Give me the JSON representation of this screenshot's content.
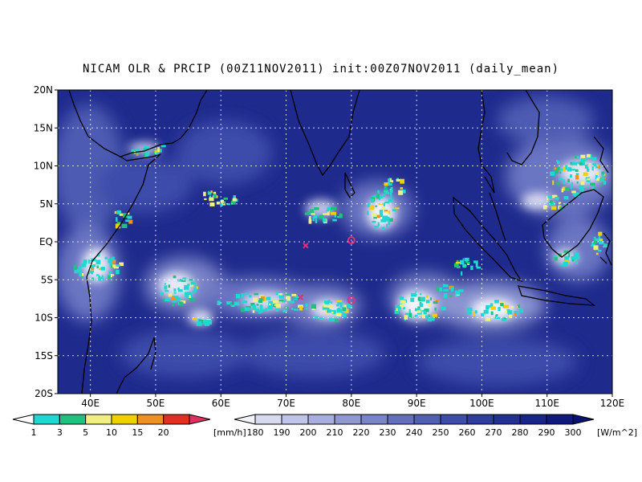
{
  "title": "NICAM OLR & PRCIP (00Z11NOV2011) init:00Z07NOV2011 (daily_mean)",
  "map": {
    "lon_range": [
      35,
      120
    ],
    "lat_range": [
      -20,
      20
    ],
    "grid": "dotted",
    "lat_ticks": [
      "20N",
      "15N",
      "10N",
      "5N",
      "EQ",
      "5S",
      "10S",
      "15S",
      "20S"
    ],
    "lon_ticks": [
      "40E",
      "50E",
      "60E",
      "70E",
      "80E",
      "90E",
      "100E",
      "110E",
      "120E"
    ],
    "ocean_color": "#1e2a8c",
    "markers": [
      {
        "type": "x",
        "lon": 73,
        "lat": -0.5,
        "color": "#e0307a"
      },
      {
        "type": "x",
        "lon": 72.2,
        "lat": -7.3,
        "color": "#e0307a"
      },
      {
        "type": "o",
        "lon": 80,
        "lat": 0.2,
        "color": "#e0307a"
      },
      {
        "type": "o",
        "lon": 80,
        "lat": -7.7,
        "color": "#e0307a"
      }
    ]
  },
  "precip_colorbar": {
    "labels": [
      "1",
      "3",
      "5",
      "10",
      "15",
      "20"
    ],
    "unit": "[mm/h]",
    "colors": [
      "#20d8d0",
      "#20c080",
      "#f0f080",
      "#f0d000",
      "#f09020",
      "#e03020"
    ]
  },
  "olr_colorbar": {
    "labels": [
      "180",
      "190",
      "200",
      "210",
      "220",
      "230",
      "240",
      "250",
      "260",
      "270",
      "280",
      "290",
      "300"
    ],
    "unit": "[W/m^2]",
    "colors": [
      "#f2f2fa",
      "#d8daf0",
      "#c0c4e8",
      "#a8aede",
      "#9098d2",
      "#7a84c8",
      "#6470be",
      "#505eb4",
      "#3e4caa",
      "#2e3ca0",
      "#222f95",
      "#19248a",
      "#101a7e",
      "#0a1270"
    ]
  }
}
